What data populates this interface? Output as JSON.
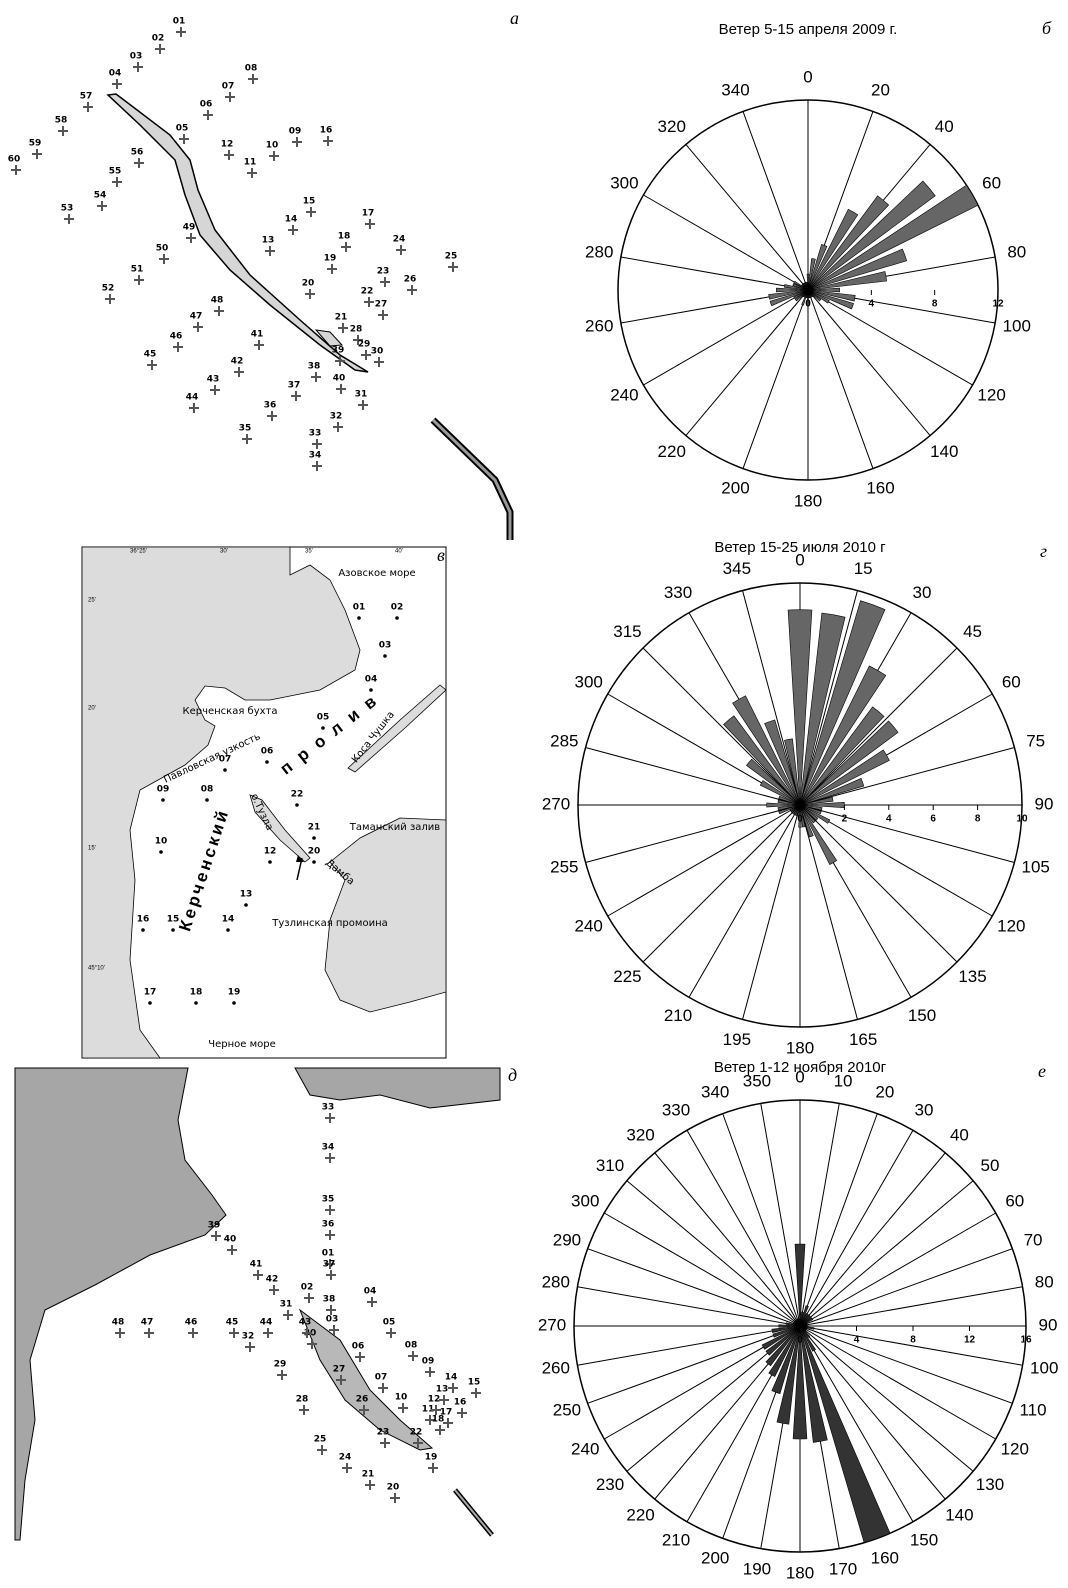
{
  "maps": [
    {
      "letter": "а",
      "stations": [
        "01",
        "02",
        "03",
        "04",
        "05",
        "06",
        "07",
        "08",
        "09",
        "10",
        "11",
        "12",
        "13",
        "14",
        "15",
        "16",
        "17",
        "18",
        "19",
        "20",
        "21",
        "22",
        "23",
        "24",
        "25",
        "26",
        "27",
        "28",
        "29",
        "30",
        "31",
        "32",
        "33",
        "34",
        "35",
        "36",
        "37",
        "38",
        "39",
        "40",
        "41",
        "42",
        "43",
        "44",
        "45",
        "46",
        "47",
        "48",
        "49",
        "50",
        "51",
        "52",
        "53",
        "54",
        "55",
        "56",
        "57",
        "58",
        "59",
        "60"
      ]
    },
    {
      "letter": "в",
      "stations": [
        "01",
        "02",
        "03",
        "04",
        "05",
        "06",
        "07",
        "08",
        "09",
        "10",
        "12",
        "13",
        "14",
        "15",
        "16",
        "17",
        "18",
        "19",
        "20",
        "21",
        "22"
      ],
      "coords": [
        "36°25'",
        "30'",
        "35'",
        "40'",
        "25'",
        "20'",
        "15'",
        "45°10'"
      ],
      "places": [
        "Азовское море",
        "Керченская бухта",
        "Павловская узкость",
        "Коса Чушка",
        "п р о л и в",
        "Керченский",
        "о.Тузла",
        "Таманский залив",
        "Дамба",
        "Тузлинская промоина",
        "Черное море"
      ]
    },
    {
      "letter": "д",
      "stations": [
        "33",
        "34",
        "35",
        "36",
        "01",
        "37",
        "38",
        "39",
        "40",
        "41",
        "42",
        "31",
        "02",
        "03",
        "04",
        "05",
        "06",
        "07",
        "08",
        "09",
        "10",
        "11",
        "12",
        "13",
        "14",
        "15",
        "16",
        "17",
        "18",
        "19",
        "20",
        "21",
        "22",
        "23",
        "24",
        "25",
        "26",
        "27",
        "28",
        "29",
        "30",
        "32",
        "43",
        "44",
        "45",
        "46",
        "47",
        "48"
      ]
    }
  ],
  "chart_data": [
    {
      "type": "polar-bar",
      "letter": "б",
      "title": "Ветер 5-15 апреля 2009 г.",
      "color": "#666666",
      "x": [
        0,
        10,
        20,
        30,
        40,
        50,
        60,
        70,
        80,
        90,
        100,
        110,
        120,
        130,
        140,
        150,
        160,
        170,
        180,
        190,
        200,
        210,
        220,
        230,
        240,
        250,
        260,
        270,
        280,
        290,
        300,
        310,
        320,
        330,
        340,
        350
      ],
      "values": [
        1,
        2,
        3,
        5.7,
        7.4,
        10,
        12,
        6.5,
        5,
        2,
        3,
        3,
        1.5,
        1,
        0.5,
        0.5,
        0.5,
        0.5,
        1,
        0.5,
        1,
        0.5,
        0.5,
        1,
        1,
        2.5,
        2.5,
        2,
        1.5,
        1,
        1,
        0.5,
        0.5,
        0.5,
        0.5,
        0.5
      ],
      "xlim": [
        0,
        360
      ],
      "xticks": [
        0,
        20,
        40,
        60,
        80,
        100,
        120,
        140,
        160,
        180,
        200,
        220,
        240,
        260,
        280,
        300,
        320,
        340
      ],
      "ylim": [
        0,
        12
      ],
      "yticks": [
        0,
        4,
        8,
        12
      ]
    },
    {
      "type": "polar-bar",
      "letter": "г",
      "title": "Ветер 15-25 июля 2010 г",
      "color": "#666666",
      "x": [
        0,
        10,
        20,
        30,
        40,
        50,
        60,
        70,
        80,
        90,
        100,
        110,
        120,
        130,
        140,
        150,
        160,
        170,
        180,
        190,
        200,
        210,
        220,
        230,
        240,
        250,
        260,
        270,
        280,
        290,
        300,
        310,
        320,
        330,
        340,
        350
      ],
      "values": [
        8.8,
        8.7,
        9.6,
        7,
        5.5,
        5.5,
        4.5,
        3,
        1.5,
        2,
        1,
        1,
        1.5,
        1,
        1,
        3,
        1.5,
        1,
        1,
        0.5,
        0.5,
        0.5,
        0.5,
        0.5,
        0.5,
        1,
        1,
        1.5,
        1,
        1,
        2,
        3,
        5,
        5.5,
        4,
        3
      ],
      "xlim": [
        0,
        360
      ],
      "xticks": [
        0,
        15,
        30,
        45,
        60,
        75,
        90,
        105,
        120,
        135,
        150,
        165,
        180,
        195,
        210,
        225,
        240,
        255,
        270,
        285,
        300,
        315,
        330,
        345
      ],
      "ylim": [
        0,
        10
      ],
      "yticks": [
        0,
        2,
        4,
        6,
        8,
        10
      ]
    },
    {
      "type": "polar-bar",
      "letter": "е",
      "title": "Ветер 1-12 ноября 2010г",
      "color": "#333333",
      "x": [
        0,
        10,
        20,
        30,
        40,
        50,
        60,
        70,
        80,
        90,
        100,
        110,
        120,
        130,
        140,
        150,
        160,
        170,
        180,
        190,
        200,
        210,
        220,
        230,
        240,
        250,
        260,
        270,
        280,
        290,
        300,
        310,
        320,
        330,
        340,
        350
      ],
      "values": [
        5.8,
        1,
        1.5,
        1,
        1,
        1,
        1,
        0.5,
        0.5,
        0.5,
        1,
        0.5,
        0.5,
        0.5,
        1,
        2,
        16,
        8.3,
        8,
        7,
        5,
        4,
        3.5,
        3,
        3,
        2,
        2,
        1.5,
        1,
        0.5,
        0.5,
        0.5,
        0.5,
        0.5,
        0.5,
        0.5
      ],
      "xlim": [
        0,
        360
      ],
      "xticks": [
        0,
        10,
        20,
        30,
        40,
        50,
        60,
        70,
        80,
        90,
        100,
        110,
        120,
        130,
        140,
        150,
        160,
        170,
        180,
        190,
        200,
        210,
        220,
        230,
        240,
        250,
        260,
        270,
        280,
        290,
        300,
        310,
        320,
        330,
        340,
        350
      ],
      "ylim": [
        0,
        16
      ],
      "yticks": [
        0,
        4,
        8,
        12,
        16
      ]
    }
  ]
}
